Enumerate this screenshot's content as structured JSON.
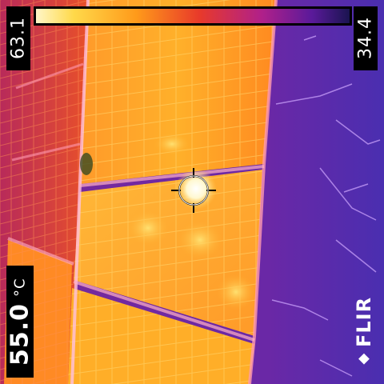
{
  "readouts": {
    "max_value": "63.1",
    "min_value": "34.4",
    "spot_value": "55.0",
    "unit": "°C"
  },
  "brand": {
    "logo_text": "FLIR",
    "logo_icon": "flame-diamond-icon"
  },
  "palette": {
    "hot": "#fff6c8",
    "warm": "#ffb020",
    "mid": "#e83a2a",
    "cool": "#8a20a0",
    "cold": "#1a1450"
  }
}
